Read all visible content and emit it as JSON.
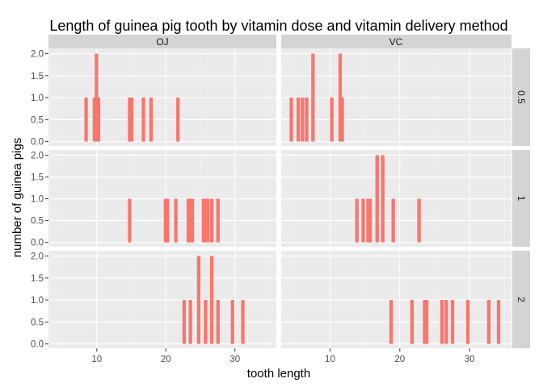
{
  "chart_data": {
    "type": "bar",
    "title": "Length of guinea pig tooth by vitamin dose and vitamin delivery method",
    "xlabel": "tooth length",
    "ylabel": "number of guinea pigs",
    "xlim": [
      3,
      36
    ],
    "ylim": [
      -0.1,
      2.12
    ],
    "x_ticks": [
      10,
      20,
      30
    ],
    "y_ticks": [
      0.0,
      0.5,
      1.0,
      1.5,
      2.0
    ],
    "y_tick_labels": [
      "0.0",
      "0.5",
      "1.0",
      "1.5",
      "2.0"
    ],
    "bin_width": 0.5,
    "columns": [
      "OJ",
      "VC"
    ],
    "rows": [
      "0.5",
      "1",
      "2"
    ],
    "colors": {
      "bar": "#f8766d",
      "panel": "#ebebeb",
      "grid_major": "#ffffff",
      "grid_minor": "#f2f2f2",
      "strip": "#d4d4d4"
    },
    "panels": [
      {
        "supp": "OJ",
        "dose": "0.5",
        "bars": [
          [
            8.2,
            1
          ],
          [
            9.4,
            1
          ],
          [
            9.7,
            2
          ],
          [
            10,
            1
          ],
          [
            14.5,
            1
          ],
          [
            14.8,
            1
          ],
          [
            16.5,
            1
          ],
          [
            17.6,
            1
          ],
          [
            21.5,
            1
          ]
        ]
      },
      {
        "supp": "VC",
        "dose": "0.5",
        "bars": [
          [
            4.2,
            1
          ],
          [
            5.2,
            1
          ],
          [
            5.8,
            1
          ],
          [
            6.4,
            1
          ],
          [
            7.3,
            2
          ],
          [
            10,
            1
          ],
          [
            11.2,
            2
          ],
          [
            11.5,
            1
          ]
        ]
      },
      {
        "supp": "OJ",
        "dose": "1",
        "bars": [
          [
            14.5,
            1
          ],
          [
            19.7,
            1
          ],
          [
            20,
            1
          ],
          [
            21.2,
            1
          ],
          [
            23,
            1
          ],
          [
            23.3,
            1
          ],
          [
            23.6,
            1
          ],
          [
            25.2,
            1
          ],
          [
            25.5,
            1
          ],
          [
            25.8,
            1
          ],
          [
            26.4,
            1
          ],
          [
            27.3,
            1
          ]
        ]
      },
      {
        "supp": "VC",
        "dose": "1",
        "bars": [
          [
            13.6,
            1
          ],
          [
            14.5,
            1
          ],
          [
            15.2,
            1
          ],
          [
            15.5,
            1
          ],
          [
            16.5,
            2
          ],
          [
            17.3,
            2
          ],
          [
            18.8,
            1
          ],
          [
            22.5,
            1
          ]
        ]
      },
      {
        "supp": "OJ",
        "dose": "2",
        "bars": [
          [
            22.4,
            1
          ],
          [
            23.3,
            1
          ],
          [
            24.5,
            2
          ],
          [
            25.5,
            1
          ],
          [
            26.4,
            2
          ],
          [
            27.3,
            1
          ],
          [
            29.4,
            1
          ],
          [
            30.9,
            1
          ]
        ]
      },
      {
        "supp": "VC",
        "dose": "2",
        "bars": [
          [
            18.5,
            1
          ],
          [
            21.5,
            1
          ],
          [
            23.3,
            1
          ],
          [
            23.6,
            1
          ],
          [
            25.8,
            1
          ],
          [
            26.4,
            1
          ],
          [
            27.3,
            1
          ],
          [
            29.5,
            1
          ],
          [
            32.5,
            1
          ],
          [
            33.9,
            1
          ]
        ]
      }
    ]
  }
}
